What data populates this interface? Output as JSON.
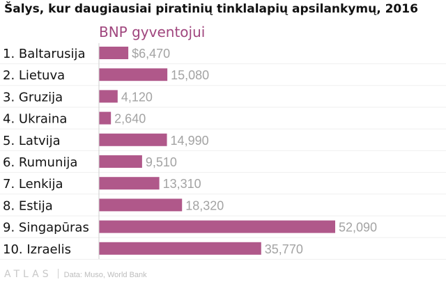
{
  "chart_data": {
    "type": "bar",
    "orientation": "horizontal",
    "title": "Šalys, kur daugiausiai piratinių tinklalapių apsilankymų, 2016",
    "subtitle": "BNP gyventojui",
    "categories": [
      "1. Baltarusija",
      "2. Lietuva",
      "3. Gruzija",
      "4. Ukraina",
      "5. Latvija",
      "6. Rumunija",
      "7. Lenkija",
      "8. Estija",
      "9. Singapūras",
      "10. Izraelis"
    ],
    "values": [
      6470,
      15080,
      4120,
      2640,
      14990,
      9510,
      13310,
      18320,
      52090,
      35770
    ],
    "value_labels": [
      "$6,470",
      "15,080",
      "4,120",
      "2,640",
      "14,990",
      "9,510",
      "13,310",
      "18,320",
      "52,090",
      "35,770"
    ],
    "xlim": [
      0,
      52090
    ],
    "grid": true,
    "bar_color": "#b0588a",
    "legend": "none"
  },
  "footer": {
    "logo": "ATLAS",
    "source": "Data: Muso, World Bank"
  }
}
